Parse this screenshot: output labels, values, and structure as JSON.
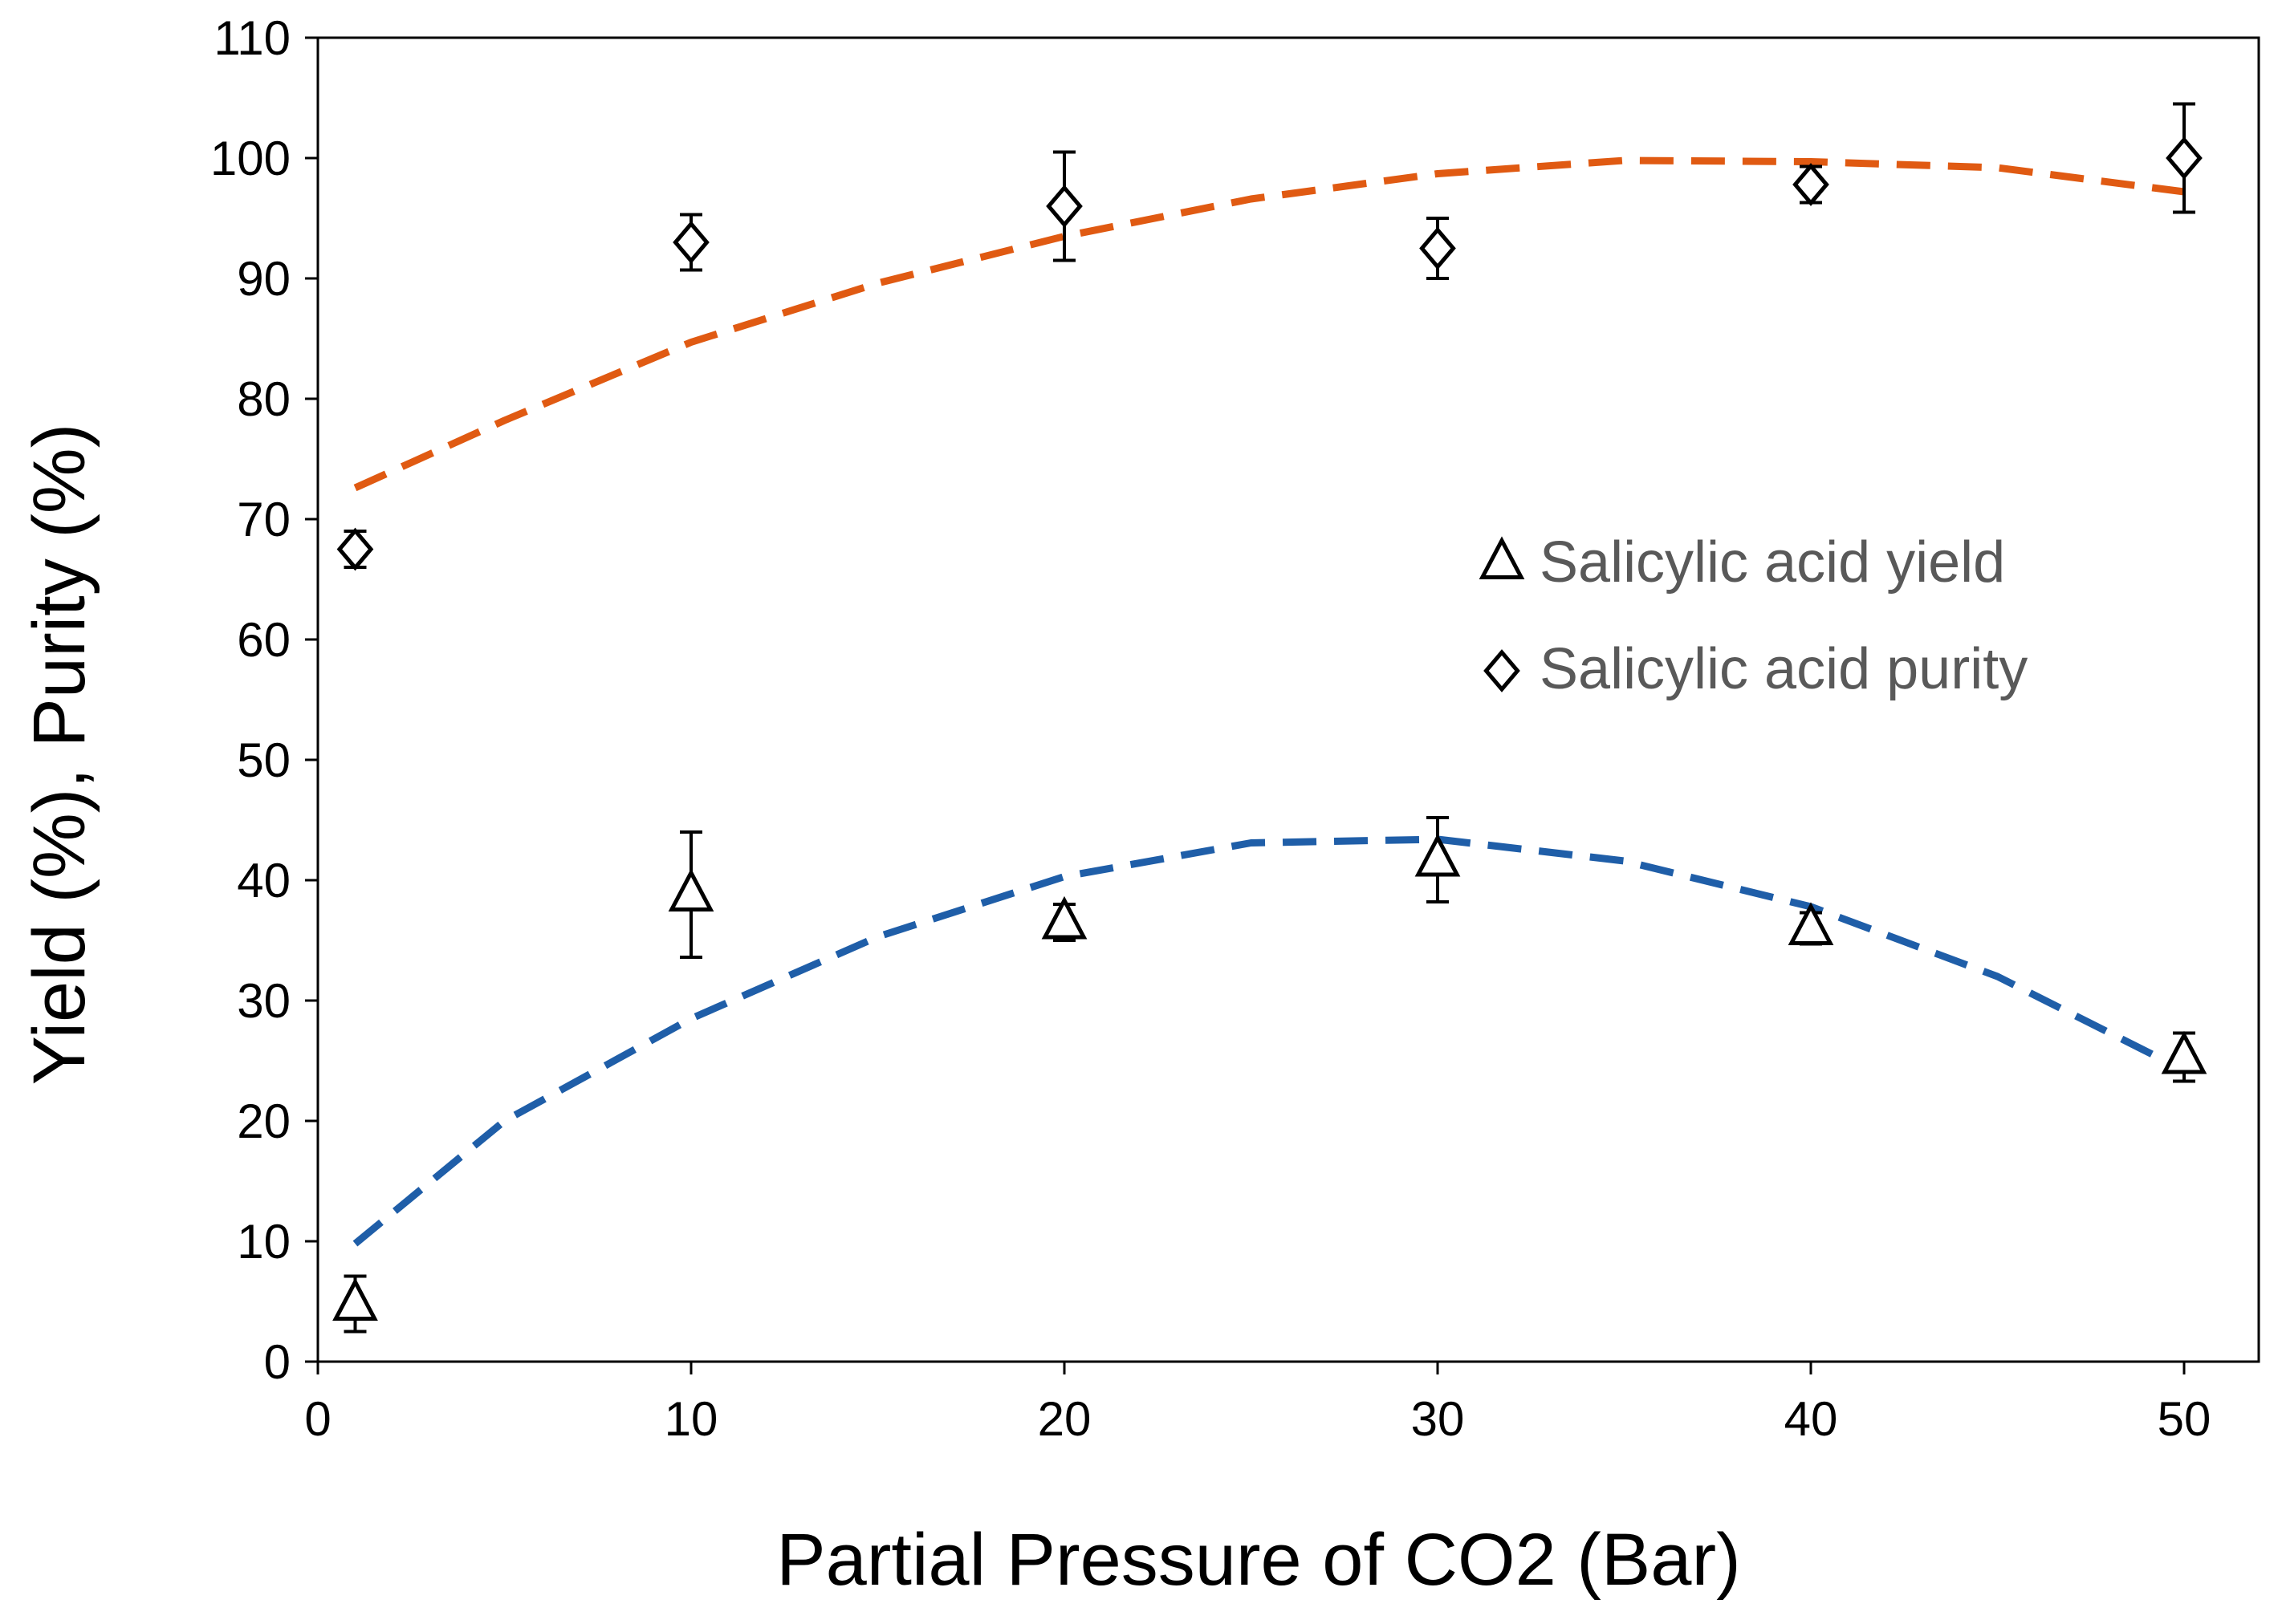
{
  "chart_data": {
    "type": "scatter",
    "title": "",
    "xlabel": "Partial Pressure of CO2 (Bar)",
    "ylabel": "Yield (%), Purity (%)",
    "xlim": [
      0,
      52
    ],
    "ylim": [
      0,
      110
    ],
    "xticks": [
      0,
      10,
      20,
      30,
      40,
      50
    ],
    "yticks": [
      0,
      10,
      20,
      30,
      40,
      50,
      60,
      70,
      80,
      90,
      100,
      110
    ],
    "grid": false,
    "legend_position": "center-right",
    "series": [
      {
        "name": "Salicylic acid yield",
        "marker": "triangle",
        "x": [
          1,
          10,
          20,
          30,
          40,
          50
        ],
        "y": [
          4.8,
          38.8,
          36.5,
          41.7,
          36.0,
          25.3
        ],
        "error": [
          2.3,
          5.2,
          1.5,
          3.5,
          1.3,
          2.0
        ],
        "trendline": {
          "color": "#1f5ea8",
          "x": [
            1,
            5,
            10,
            15,
            20,
            25,
            30,
            35,
            40,
            45,
            50
          ],
          "y": [
            9.8,
            20.0,
            28.5,
            35.3,
            40.3,
            43.1,
            43.4,
            41.6,
            37.8,
            32.0,
            24.2
          ]
        }
      },
      {
        "name": "Salicylic acid purity",
        "marker": "diamond",
        "x": [
          1,
          10,
          20,
          30,
          40,
          50
        ],
        "y": [
          67.5,
          93.0,
          96.0,
          92.5,
          97.8,
          100.0
        ],
        "error": [
          1.5,
          2.3,
          4.5,
          2.5,
          1.5,
          4.5
        ],
        "trendline": {
          "color": "#e05a12",
          "x": [
            1,
            5,
            10,
            15,
            20,
            25,
            30,
            35,
            40,
            45,
            50
          ],
          "y": [
            72.6,
            78.2,
            84.7,
            89.6,
            93.5,
            96.6,
            98.7,
            99.8,
            99.7,
            99.2,
            97.2
          ]
        }
      }
    ]
  }
}
